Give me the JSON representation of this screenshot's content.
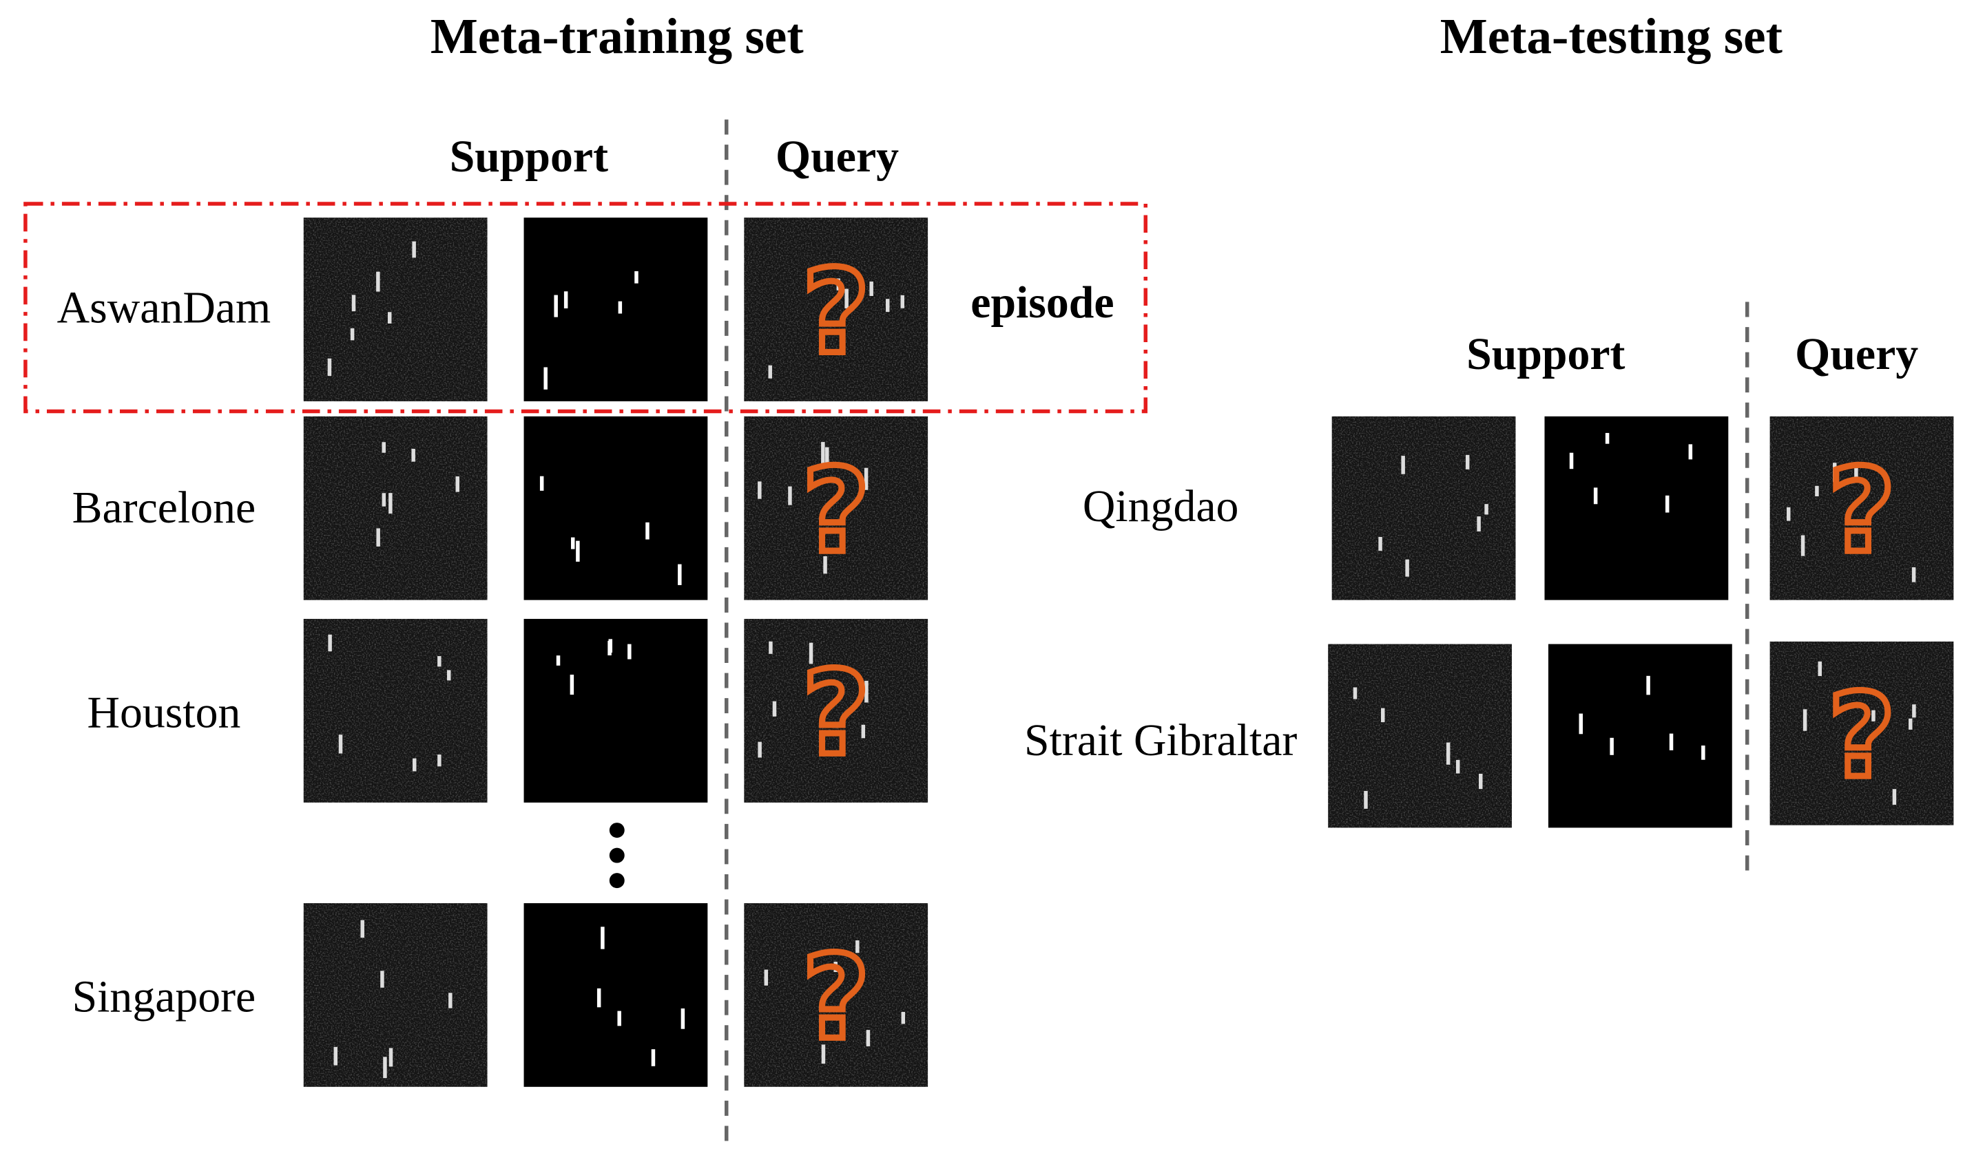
{
  "meta_training": {
    "title": "Meta-training set",
    "support_label": "Support",
    "query_label": "Query",
    "episode_label": "episode",
    "rows": [
      {
        "name": "AswanDam"
      },
      {
        "name": "Barcelone"
      },
      {
        "name": "Houston"
      },
      {
        "name": "Singapore"
      }
    ]
  },
  "meta_testing": {
    "title": "Meta-testing set",
    "support_label": "Support",
    "query_label": "Query",
    "rows": [
      {
        "name": "Qingdao"
      },
      {
        "name": "Strait Gibraltar"
      }
    ]
  },
  "query_mark": "?"
}
